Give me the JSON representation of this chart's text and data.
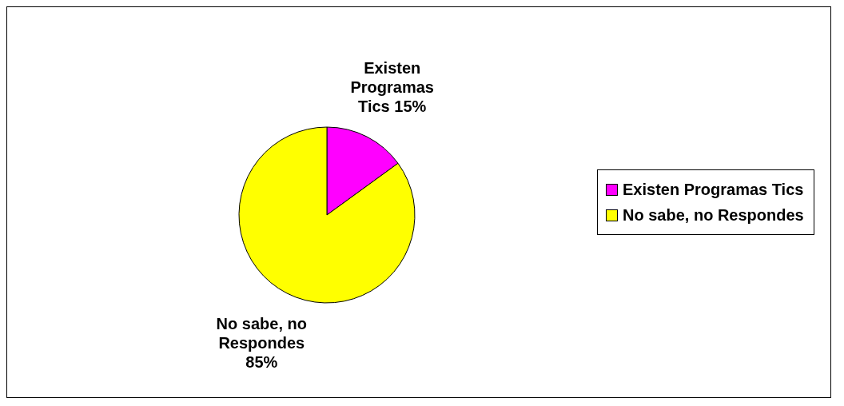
{
  "chart_data": {
    "type": "pie",
    "categories": [
      "Existen Programas Tics",
      "No sabe, no Respondes"
    ],
    "values": [
      15,
      85
    ],
    "colors": [
      "#ff00ff",
      "#ffff00"
    ],
    "value_labels": [
      "Existen Programas Tics 15%",
      "No sabe, no Respondes 85%"
    ],
    "legend": "right"
  }
}
